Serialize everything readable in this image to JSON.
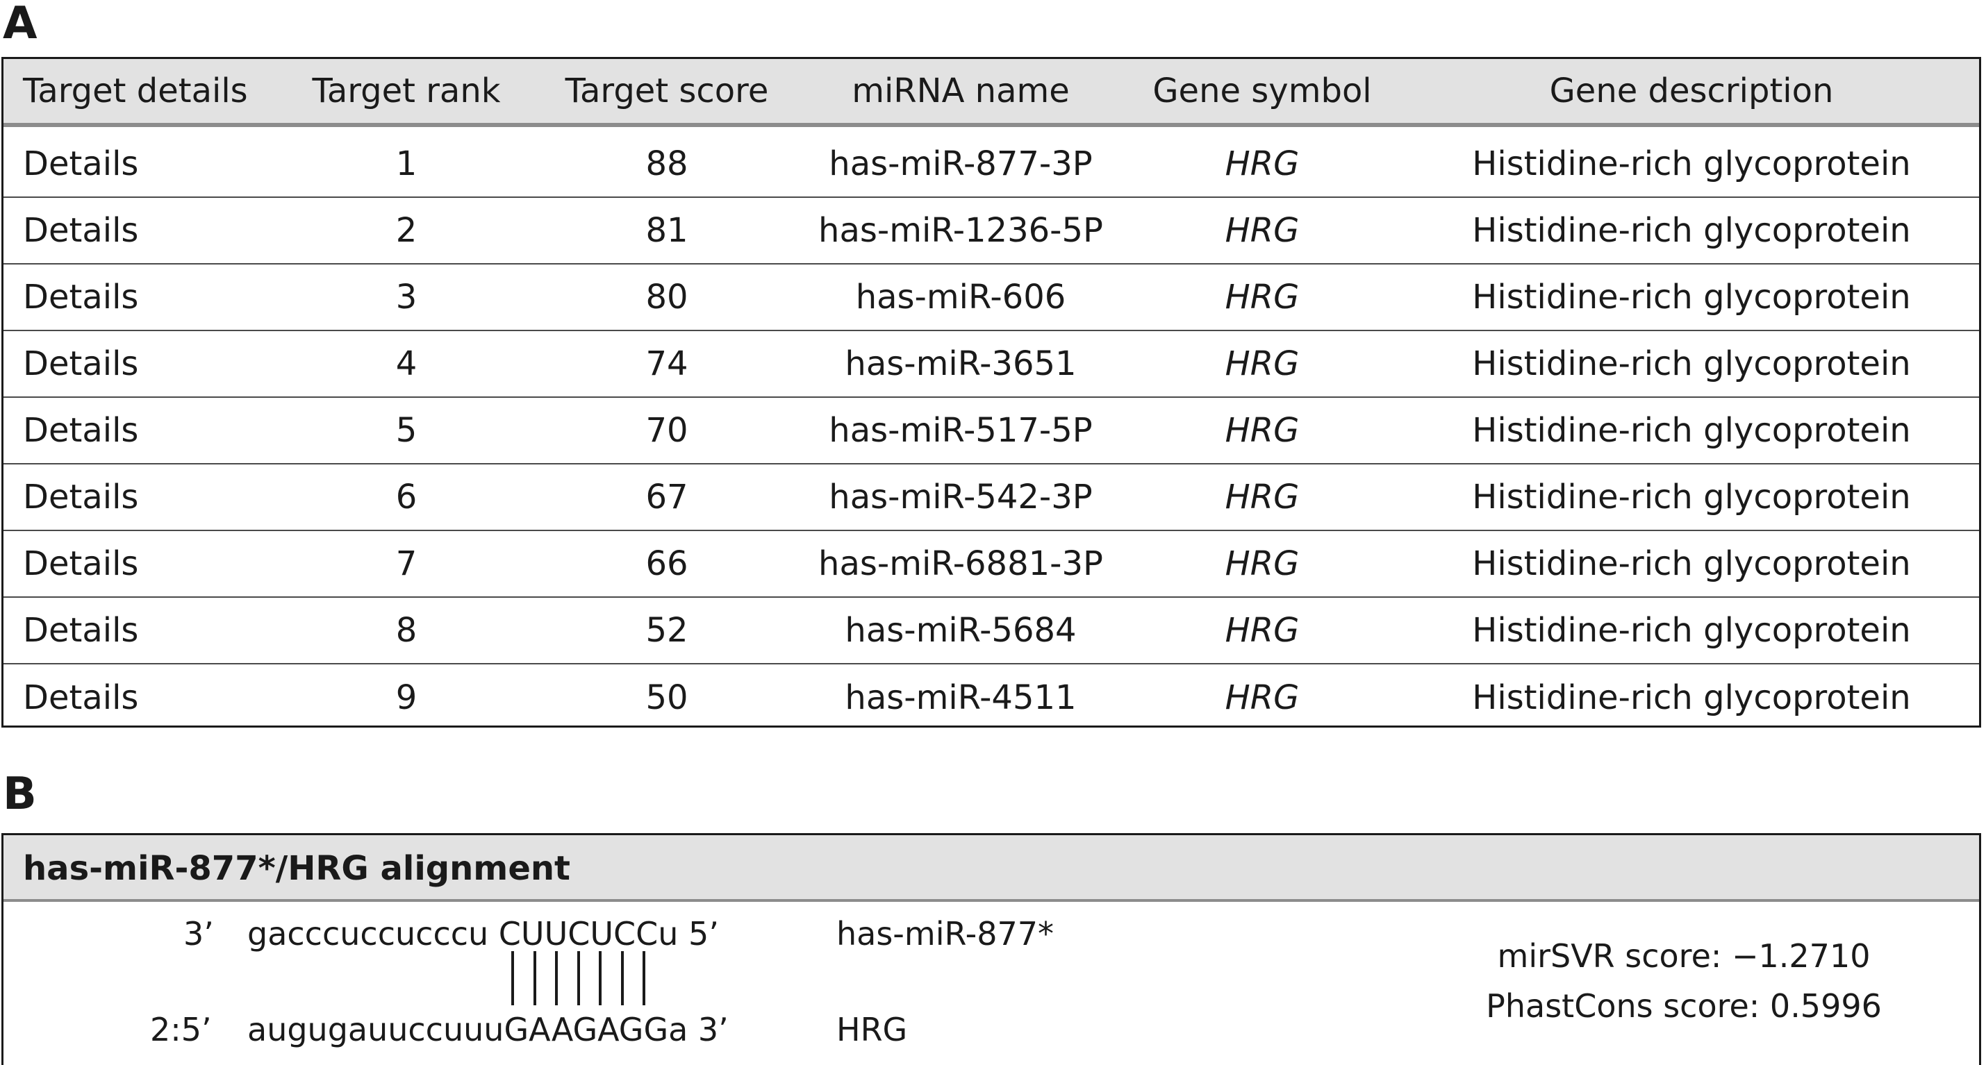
{
  "panel_a": {
    "label": "A",
    "headers": [
      "Target details",
      "Target rank",
      "Target score",
      "miRNA name",
      "Gene symbol",
      "Gene description"
    ],
    "rows": [
      {
        "details": "Details",
        "rank": "1",
        "score": "88",
        "mirna": "has-miR-877-3P",
        "gene": "HRG",
        "description": "Histidine-rich glycoprotein"
      },
      {
        "details": "Details",
        "rank": "2",
        "score": "81",
        "mirna": "has-miR-1236-5P",
        "gene": "HRG",
        "description": "Histidine-rich glycoprotein"
      },
      {
        "details": "Details",
        "rank": "3",
        "score": "80",
        "mirna": "has-miR-606",
        "gene": "HRG",
        "description": "Histidine-rich glycoprotein"
      },
      {
        "details": "Details",
        "rank": "4",
        "score": "74",
        "mirna": "has-miR-3651",
        "gene": "HRG",
        "description": "Histidine-rich glycoprotein"
      },
      {
        "details": "Details",
        "rank": "5",
        "score": "70",
        "mirna": "has-miR-517-5P",
        "gene": "HRG",
        "description": "Histidine-rich glycoprotein"
      },
      {
        "details": "Details",
        "rank": "6",
        "score": "67",
        "mirna": "has-miR-542-3P",
        "gene": "HRG",
        "description": "Histidine-rich glycoprotein"
      },
      {
        "details": "Details",
        "rank": "7",
        "score": "66",
        "mirna": "has-miR-6881-3P",
        "gene": "HRG",
        "description": "Histidine-rich glycoprotein"
      },
      {
        "details": "Details",
        "rank": "8",
        "score": "52",
        "mirna": "has-miR-5684",
        "gene": "HRG",
        "description": "Histidine-rich glycoprotein"
      },
      {
        "details": "Details",
        "rank": "9",
        "score": "50",
        "mirna": "has-miR-4511",
        "gene": "HRG",
        "description": "Histidine-rich glycoprotein"
      }
    ]
  },
  "panel_b": {
    "label": "B",
    "title": "has-miR-877*/HRG alignment",
    "mirna_prefix": "3’",
    "mirna_seq": "gacccuccucccu CUUCUCCu 5’",
    "mirna_name": "has-miR-877*",
    "target_prefix": "2:5’",
    "target_seq": "augugauuccuuuGAAGAGGa 3’",
    "target_name": "HRG",
    "pair_count": 7,
    "mirsvr": "mirSVR score: −1.2710",
    "phastcons": "PhastCons score: 0.5996"
  }
}
